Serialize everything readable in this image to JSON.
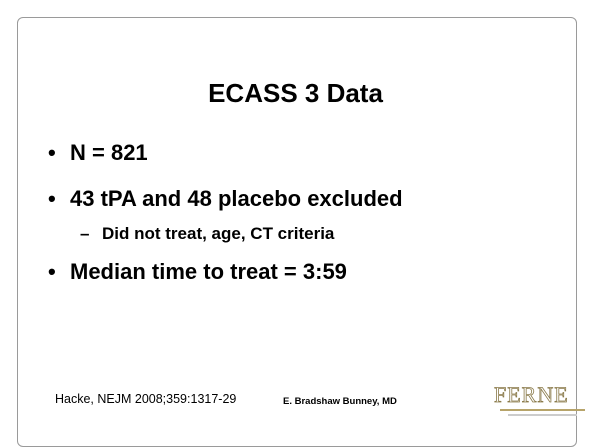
{
  "title": "ECASS 3 Data",
  "bullets": [
    "N = 821",
    "43 tPA and 48 placebo excluded",
    "Median time to treat = 3:59"
  ],
  "sub_bullets": [
    "Did not treat, age, CT criteria"
  ],
  "footer": {
    "citation": "Hacke, NEJM 2008;359:1317-29",
    "presenter": "E. Bradshaw Bunney, MD",
    "logo": "FERNE"
  }
}
